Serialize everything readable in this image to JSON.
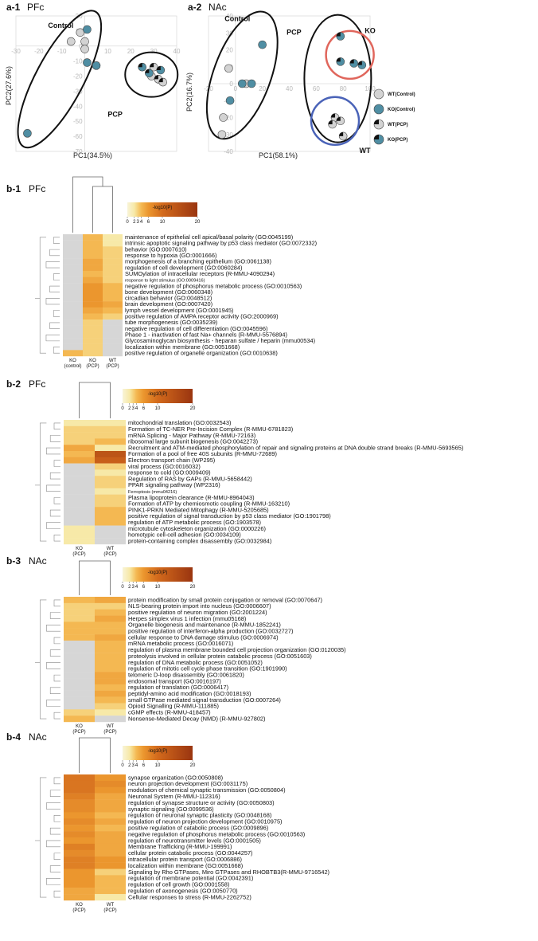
{
  "colors": {
    "wt_point": "#d3d3d3",
    "ko_point": "#4f8ea3",
    "ellipse": "#111111",
    "ko_circle": "#e0665c",
    "wt_circle": "#4a63b8",
    "na_cell": "#d6d6d6",
    "scale_low": "#f7f1c9",
    "scale_mid": "#f3a335",
    "scale_high": "#a63a10"
  },
  "panel_a1": {
    "label": "a-1",
    "region": "PFc",
    "xlabel": "PC1(34.5%)",
    "ylabel": "PC2(27.6%)",
    "xticks": [
      "-30",
      "-20",
      "-10",
      "0",
      "10",
      "20",
      "30",
      "40"
    ],
    "yticks": [
      "20",
      "10",
      "0",
      "-10",
      "-20",
      "-30",
      "-40",
      "-50",
      "-60",
      "-70"
    ],
    "group_labels": [
      "Control",
      "PCP"
    ]
  },
  "panel_a2": {
    "label": "a-2",
    "region": "NAc",
    "xlabel": "PC1(58.1%)",
    "ylabel": "PC2(16.7%)",
    "xticks": [
      "-20",
      "0",
      "20",
      "40",
      "60",
      "80",
      "100"
    ],
    "yticks": [
      "40",
      "30",
      "20",
      "10",
      "0",
      "-10",
      "-20",
      "-30",
      "-40"
    ],
    "group_labels": [
      "Control",
      "PCP",
      "KO",
      "WT"
    ]
  },
  "legend": [
    "WT(Control)",
    "KO(Control)",
    "WT(PCP)",
    "KO(PCP)"
  ],
  "chart_data": [
    {
      "type": "scatter",
      "title": "",
      "xlabel": "PC1(34.5%)",
      "ylabel": "PC2(27.6%)",
      "xlim": [
        -30,
        40
      ],
      "ylim": [
        -70,
        20
      ],
      "series": [
        {
          "name": "WT(Control)",
          "points": [
            [
              -2,
              9
            ],
            [
              -6,
              3
            ],
            [
              0,
              3
            ],
            [
              0,
              -2
            ]
          ]
        },
        {
          "name": "KO(Control)",
          "points": [
            [
              1,
              11
            ],
            [
              1,
              -11
            ],
            [
              5,
              -13
            ],
            [
              -25,
              -58
            ]
          ]
        },
        {
          "name": "WT(PCP)",
          "points": [
            [
              29,
              -20
            ],
            [
              32,
              -22
            ],
            [
              34,
              -24
            ],
            [
              30,
              -14
            ]
          ]
        },
        {
          "name": "KO(PCP)",
          "points": [
            [
              25,
              -14
            ],
            [
              28,
              -18
            ],
            [
              33,
              -16
            ]
          ]
        }
      ]
    },
    {
      "type": "scatter",
      "title": "",
      "xlabel": "PC1(58.1%)",
      "ylabel": "PC2(16.7%)",
      "xlim": [
        -20,
        100
      ],
      "ylim": [
        -40,
        40
      ],
      "series": [
        {
          "name": "WT(Control)",
          "points": [
            [
              -5,
              9
            ],
            [
              -9,
              -20
            ],
            [
              8,
              0
            ],
            [
              -10,
              -30
            ]
          ]
        },
        {
          "name": "KO(Control)",
          "points": [
            [
              20,
              23
            ],
            [
              -4,
              -10
            ],
            [
              5,
              0
            ],
            [
              12,
              0
            ]
          ]
        },
        {
          "name": "WT(PCP)",
          "points": [
            [
              74,
              -20
            ],
            [
              78,
              -22
            ],
            [
              72,
              -24
            ],
            [
              80,
              -31
            ]
          ]
        },
        {
          "name": "KO(PCP)",
          "points": [
            [
              78,
              28
            ],
            [
              88,
              12
            ],
            [
              78,
              13
            ],
            [
              94,
              11
            ]
          ]
        }
      ]
    },
    {
      "type": "heatmap",
      "panel": "b-1",
      "region": "PFc",
      "scale_title": "-log10(P)",
      "scale_ticks": [
        "0",
        "2",
        "3",
        "4",
        "6",
        "10",
        "20"
      ],
      "columns": [
        [
          "KO",
          "(control)"
        ],
        [
          "KO",
          "(PCP)"
        ],
        [
          "WT",
          "(PCP)"
        ]
      ],
      "rows": [
        {
          "term": "maintenance of epithelial cell apical/basal polarity (GO:0045199)",
          "values": [
            null,
            4,
            2
          ]
        },
        {
          "term": "intrinsic apoptotic signaling pathway by p53 class mediator (GO:0072332)",
          "values": [
            null,
            4,
            2
          ]
        },
        {
          "term": "behavior (GO:0007610)",
          "values": [
            null,
            4,
            3
          ]
        },
        {
          "term": "response to hypoxia (GO:0001666)",
          "values": [
            null,
            4,
            3
          ]
        },
        {
          "term": "morphogenesis of a branching epithelium (GO:0061138)",
          "values": [
            null,
            5,
            3
          ]
        },
        {
          "term": "regulation of cell development (GO:0060284)",
          "values": [
            null,
            5,
            3
          ]
        },
        {
          "term": "SUMOylation of intracellular receptors (R-MMU-4090294)",
          "values": [
            null,
            4,
            3
          ]
        },
        {
          "term": "response to light stimulus (GO:0009416)",
          "values": [
            null,
            5,
            3
          ],
          "small": true
        },
        {
          "term": "negative regulation of phosphorus metabolic process (GO:0010563)",
          "values": [
            null,
            6,
            4
          ]
        },
        {
          "term": "bone development (GO:0060348)",
          "values": [
            null,
            6,
            4
          ]
        },
        {
          "term": "circadian behavior (GO:0048512)",
          "values": [
            null,
            6,
            4
          ]
        },
        {
          "term": "brain development (GO:0007420)",
          "values": [
            null,
            6,
            5
          ]
        },
        {
          "term": "lymph vessel development (GO:0001945)",
          "values": [
            null,
            5,
            4
          ]
        },
        {
          "term": "positive regulation of AMPA receptor activity (GO:2000969)",
          "values": [
            null,
            4,
            3
          ]
        },
        {
          "term": "tube morphogenesis (GO:0035239)",
          "values": [
            null,
            3,
            null
          ]
        },
        {
          "term": "negative regulation of cell differentiation (GO:0045596)",
          "values": [
            null,
            3,
            null
          ]
        },
        {
          "term": "Phase 1 - inactivation of fast Na+ channels (R-MMU-5576894)",
          "values": [
            null,
            3,
            null
          ]
        },
        {
          "term": "Glycosaminoglycan biosynthesis - heparan sulfate / heparin (mmu00534)",
          "values": [
            null,
            3,
            null
          ]
        },
        {
          "term": "localization within membrane (GO:0051668)",
          "values": [
            null,
            3,
            null
          ]
        },
        {
          "term": "positive regulation of organelle organization (GO:0010638)",
          "values": [
            4,
            3,
            null
          ]
        }
      ]
    },
    {
      "type": "heatmap",
      "panel": "b-2",
      "region": "PFc",
      "scale_title": "-log10(P)",
      "scale_ticks": [
        "0",
        "2",
        "3",
        "4",
        "6",
        "10",
        "20"
      ],
      "columns": [
        [
          "KO",
          "(PCP)"
        ],
        [
          "WT",
          "(PCP)"
        ]
      ],
      "rows": [
        {
          "term": "mitochondrial translation (GO:0032543)",
          "values": [
            2,
            2
          ]
        },
        {
          "term": "Formation of TC-NER Pre-Incision Complex (R-MMU-6781823)",
          "values": [
            3,
            3
          ]
        },
        {
          "term": "mRNA Splicing - Major Pathway (R-MMU-72163)",
          "values": [
            3,
            3
          ]
        },
        {
          "term": "ribosomal large subunit biogenesis (GO:0042273)",
          "values": [
            3,
            4
          ]
        },
        {
          "term": "Recruitment and ATM-mediated phosphorylation of repair and signaling proteins at DNA double strand breaks (R-MMU-5693565)",
          "values": [
            5,
            2
          ]
        },
        {
          "term": "Formation of a pool of free 40S subunits (R-MMU-72689)",
          "values": [
            4,
            14
          ]
        },
        {
          "term": "Electron transport chain (WP295)",
          "values": [
            5,
            12
          ]
        },
        {
          "term": "viral process (GO:0016032)",
          "values": [
            null,
            3
          ]
        },
        {
          "term": "response to cold (GO:0009409)",
          "values": [
            null,
            2
          ]
        },
        {
          "term": "Regulation of RAS by GAPs (R-MMU-5658442)",
          "values": [
            null,
            3
          ]
        },
        {
          "term": "PPAR signaling pathway (WP2316)",
          "values": [
            null,
            3
          ]
        },
        {
          "term": "Ferroptosis (mmu04216)",
          "values": [
            null,
            2
          ],
          "small": true
        },
        {
          "term": "Plasma lipoprotein clearance (R-MMU-8964043)",
          "values": [
            null,
            3
          ]
        },
        {
          "term": "Formation of ATP by chemiosmotic coupling (R-MMU-163210)",
          "values": [
            null,
            3
          ]
        },
        {
          "term": "PINK1-PRKN Mediated Mitophagy (R-MMU-5205685)",
          "values": [
            null,
            4
          ]
        },
        {
          "term": "positive regulation of signal transduction by p53 class mediator (GO:1901798)",
          "values": [
            null,
            4
          ]
        },
        {
          "term": "regulation of ATP metabolic process (GO:1903578)",
          "values": [
            null,
            4
          ]
        },
        {
          "term": "microtubule cytoskeleton organization (GO:0000226)",
          "values": [
            2,
            null
          ]
        },
        {
          "term": "homotypic cell-cell adhesion (GO:0034109)",
          "values": [
            2,
            null
          ]
        },
        {
          "term": "protein-containing complex disassembly (GO:0032984)",
          "values": [
            2,
            null
          ]
        }
      ]
    },
    {
      "type": "heatmap",
      "panel": "b-3",
      "region": "NAc",
      "scale_title": "-log10(P)",
      "scale_ticks": [
        "0",
        "2",
        "3",
        "4",
        "6",
        "10",
        "20"
      ],
      "columns": [
        [
          "KO",
          "(PCP)"
        ],
        [
          "WT",
          "(PCP)"
        ]
      ],
      "rows": [
        {
          "term": "protein modification by small protein conjugation or removal (GO:0070647)",
          "values": [
            4,
            5
          ]
        },
        {
          "term": "NLS-bearing protein import into nucleus (GO:0006607)",
          "values": [
            3,
            3
          ]
        },
        {
          "term": "positive regulation of neuron migration (GO:2001224)",
          "values": [
            3,
            4
          ]
        },
        {
          "term": "Herpes simplex virus 1 infection (mmu05168)",
          "values": [
            3,
            5
          ]
        },
        {
          "term": "Organelle biogenesis and maintenance (R-MMU-1852241)",
          "values": [
            4,
            4
          ]
        },
        {
          "term": "positive regulation of interferon-alpha production (GO:0032727)",
          "values": [
            4,
            4
          ]
        },
        {
          "term": "cellular response to DNA damage stimulus (GO:0006974)",
          "values": [
            4,
            5
          ]
        },
        {
          "term": "mRNA metabolic process (GO:0016071)",
          "values": [
            null,
            4
          ]
        },
        {
          "term": "regulation of plasma membrane bounded cell projection organization (GO:0120035)",
          "values": [
            null,
            4
          ]
        },
        {
          "term": "proteolysis involved in cellular protein catabolic process (GO:0051603)",
          "values": [
            null,
            4
          ]
        },
        {
          "term": "regulation of DNA metabolic process (GO:0051052)",
          "values": [
            null,
            4
          ]
        },
        {
          "term": "regulation of mitotic cell cycle phase transition (GO:1901990)",
          "values": [
            null,
            4
          ]
        },
        {
          "term": "telomeric D-loop disassembly (GO:0061820)",
          "values": [
            null,
            5
          ]
        },
        {
          "term": "endosomal transport (GO:0016197)",
          "values": [
            null,
            5
          ]
        },
        {
          "term": "regulation of translation (GO:0006417)",
          "values": [
            null,
            4
          ]
        },
        {
          "term": "peptidyl-amino acid modification (GO:0018193)",
          "values": [
            null,
            5
          ]
        },
        {
          "term": "small GTPase mediated signal transduction (GO:0007264)",
          "values": [
            null,
            4
          ]
        },
        {
          "term": "Opioid Signalling (R-MMU-111885)",
          "values": [
            null,
            3
          ]
        },
        {
          "term": "cGMP effects (R-MMU-418457)",
          "values": [
            3,
            2
          ]
        },
        {
          "term": "Nonsense-Mediated Decay (NMD) (R-MMU-927802)",
          "values": [
            4,
            null
          ]
        }
      ]
    },
    {
      "type": "heatmap",
      "panel": "b-4",
      "region": "NAc",
      "scale_title": "-log10(P)",
      "scale_ticks": [
        "0",
        "2",
        "3",
        "4",
        "6",
        "10",
        "20"
      ],
      "columns": [
        [
          "KO",
          "(PCP)"
        ],
        [
          "WT",
          "(PCP)"
        ]
      ],
      "rows": [
        {
          "term": "synapse organization (GO:0050808)",
          "values": [
            9,
            6
          ]
        },
        {
          "term": "neuron projection development (GO:0031175)",
          "values": [
            9,
            7
          ]
        },
        {
          "term": "modulation of chemical synaptic transmission (GO:0050804)",
          "values": [
            9,
            6
          ]
        },
        {
          "term": "Neuronal System (R-MMU-112316)",
          "values": [
            8,
            5
          ]
        },
        {
          "term": "regulation of synapse structure or activity (GO:0050803)",
          "values": [
            7,
            5
          ]
        },
        {
          "term": "synaptic signaling (GO:0099536)",
          "values": [
            7,
            5
          ]
        },
        {
          "term": "regulation of neuronal synaptic plasticity (GO:0048168)",
          "values": [
            6,
            4
          ]
        },
        {
          "term": "regulation of neuron projection development (GO:0010975)",
          "values": [
            7,
            5
          ]
        },
        {
          "term": "positive regulation of catabolic process (GO:0009896)",
          "values": [
            6,
            4
          ]
        },
        {
          "term": "negative regulation of phosphorus metabolic process (GO:0010563)",
          "values": [
            7,
            5
          ]
        },
        {
          "term": "regulation of neurotransmitter levels (GO:0001505)",
          "values": [
            6,
            5
          ]
        },
        {
          "term": "Membrane Trafficking (R-MMU-199991)",
          "values": [
            8,
            5
          ]
        },
        {
          "term": "cellular protein catabolic process (GO:0044257)",
          "values": [
            7,
            5
          ]
        },
        {
          "term": "intracellular protein transport (GO:0006886)",
          "values": [
            8,
            6
          ]
        },
        {
          "term": "localization within membrane (GO:0051668)",
          "values": [
            8,
            6
          ]
        },
        {
          "term": "Signaling by Rho GTPases, Miro GTPases and RHOBTB3(R-MMU-9716542)",
          "values": [
            6,
            3
          ]
        },
        {
          "term": "regulation of membrane potential (GO:0042391)",
          "values": [
            6,
            4
          ]
        },
        {
          "term": "regulation of cell growth (GO:0001558)",
          "values": [
            6,
            4
          ]
        },
        {
          "term": "regulation of axonogenesis (GO:0050770)",
          "values": [
            5,
            4
          ]
        },
        {
          "term": "Cellular responses to stress (R-MMU-2262752)",
          "values": [
            5,
            2
          ]
        }
      ]
    }
  ]
}
